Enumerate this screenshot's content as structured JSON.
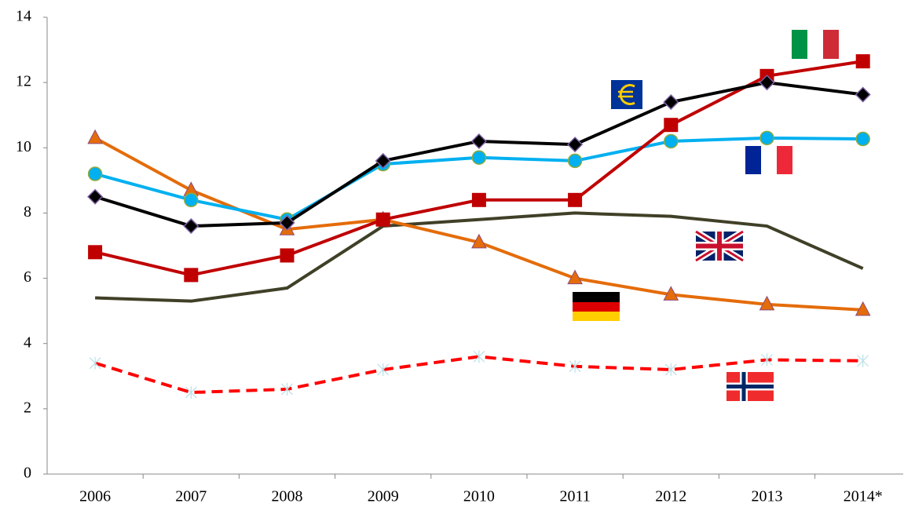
{
  "chart_data": {
    "type": "line",
    "categories": [
      "2006",
      "2007",
      "2008",
      "2009",
      "2010",
      "2011",
      "2012",
      "2013",
      "2014*"
    ],
    "ylim": [
      0,
      14
    ],
    "yticks": [
      0,
      2,
      4,
      6,
      8,
      10,
      12,
      14
    ],
    "series": [
      {
        "color": "#404028",
        "marker": "none",
        "values": [
          5.4,
          5.3,
          5.7,
          7.6,
          7.8,
          8.0,
          7.9,
          7.6,
          6.3
        ]
      },
      {
        "color": "#e46c0a",
        "marker": "triangle",
        "values": [
          10.3,
          8.7,
          7.5,
          7.8,
          7.1,
          6.0,
          5.5,
          5.2,
          5.03
        ]
      },
      {
        "color": "#00b0f0",
        "marker": "circle",
        "values": [
          9.2,
          8.4,
          7.8,
          9.5,
          9.7,
          9.6,
          10.2,
          10.3,
          10.27
        ]
      },
      {
        "color": "#c00000",
        "marker": "square",
        "values": [
          6.8,
          6.1,
          6.7,
          7.8,
          8.4,
          8.4,
          10.7,
          12.2,
          12.65
        ]
      },
      {
        "color": "#000000",
        "marker": "diamond",
        "values": [
          8.5,
          7.6,
          7.7,
          9.6,
          10.2,
          10.1,
          11.4,
          12.0,
          11.63
        ]
      },
      {
        "color": "#ff0000",
        "marker": "star",
        "dashed": true,
        "values": [
          3.4,
          2.5,
          2.6,
          3.2,
          3.6,
          3.3,
          3.2,
          3.5,
          3.47
        ]
      }
    ]
  }
}
